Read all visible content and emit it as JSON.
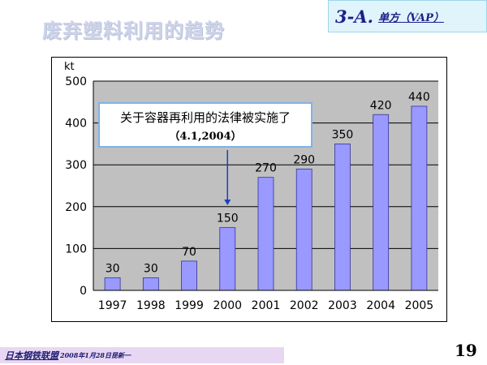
{
  "slide": {
    "title": "废弃塑料利用的趋势",
    "section_code": "3-A.",
    "section_sub": "单方（VAP）",
    "footer_org": "日本钢铁联盟",
    "footer_meta": "2008年1月28日昆新一",
    "page_number": "19"
  },
  "chart_data": {
    "type": "bar",
    "title": "",
    "xlabel": "",
    "ylabel": "kt",
    "categories": [
      "1997",
      "1998",
      "1999",
      "2000",
      "2001",
      "2002",
      "2003",
      "2004",
      "2005"
    ],
    "values": [
      30,
      30,
      70,
      150,
      270,
      290,
      350,
      420,
      440
    ],
    "ylim": [
      0,
      500
    ],
    "yticks": [
      0,
      100,
      200,
      300,
      400,
      500
    ],
    "grid": true,
    "bar_color": "#9999ff",
    "plot_background": "#c0c0c0",
    "annotation": {
      "line1": "关于容器再利用的法律被实施了",
      "line2": "（4.1,2004）",
      "target_category": "2000"
    }
  }
}
